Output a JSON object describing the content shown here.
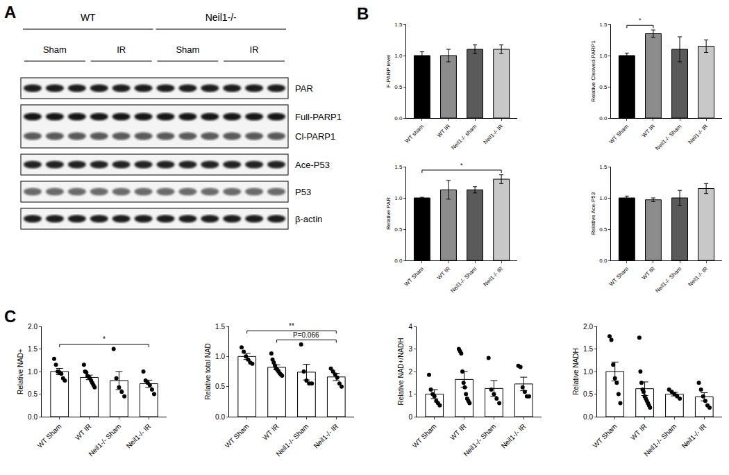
{
  "panel_labels": [
    "A",
    "B",
    "C"
  ],
  "blot": {
    "groups": [
      {
        "label": "WT",
        "conditions": [
          "Sham",
          "IR"
        ]
      },
      {
        "label": "Neil1-/-",
        "conditions": [
          "Sham",
          "IR"
        ]
      }
    ],
    "lanes_per_condition": 3,
    "rows": [
      {
        "labels": [
          "PAR"
        ]
      },
      {
        "labels": [
          "Full-PARP1",
          "Cl-PARP1"
        ]
      },
      {
        "labels": [
          "Ace-P53"
        ]
      },
      {
        "labels": [
          "P53"
        ]
      },
      {
        "labels": [
          "β-actin"
        ]
      }
    ]
  },
  "chart_data": [
    {
      "type": "bar",
      "y_label": "F-PARP level",
      "categories": [
        "WT sham",
        "WT IR",
        "Neil1-/- sham",
        "Neil1-/- IR"
      ],
      "values": [
        1.0,
        1.0,
        1.1,
        1.1
      ],
      "errors": [
        0.06,
        0.1,
        0.07,
        0.07
      ],
      "colors": [
        "#000000",
        "#8c8c8c",
        "#5a5a5a",
        "#c8c8c8"
      ],
      "ylim": [
        0,
        1.5
      ],
      "yticks": [
        {
          "value": 0,
          "label": "0.0"
        },
        {
          "value": 0.5,
          "label": "0.5"
        },
        {
          "value": 1,
          "label": "1.0"
        },
        {
          "value": 1.5,
          "label": "1.5"
        }
      ]
    },
    {
      "type": "bar",
      "y_label": "Relative Cleaved-PARP1",
      "categories": [
        "WT Sham",
        "WT IR",
        "Neil1-/- Sham",
        "Neil1-/- IR"
      ],
      "values": [
        1.0,
        1.35,
        1.1,
        1.15
      ],
      "errors": [
        0.04,
        0.06,
        0.2,
        0.1
      ],
      "colors": [
        "#000000",
        "#8c8c8c",
        "#5a5a5a",
        "#c8c8c8"
      ],
      "ylim": [
        0,
        1.5
      ],
      "yticks": [
        {
          "value": 0,
          "label": "0.0"
        },
        {
          "value": 0.5,
          "label": "0.5"
        },
        {
          "value": 1,
          "label": "1.0"
        },
        {
          "value": 1.5,
          "label": "1.5"
        }
      ],
      "brackets": [
        {
          "from": 0,
          "to": 1,
          "text": "*"
        }
      ]
    },
    {
      "type": "bar",
      "y_label": "Relative PAR",
      "categories": [
        "WT Sham",
        "WT IR",
        "Neil1-/- Sham",
        "Neil1-/- IR"
      ],
      "values": [
        1.0,
        1.13,
        1.13,
        1.3
      ],
      "errors": [
        0.01,
        0.15,
        0.05,
        0.07
      ],
      "colors": [
        "#000000",
        "#8c8c8c",
        "#5a5a5a",
        "#c8c8c8"
      ],
      "ylim": [
        0,
        1.5
      ],
      "yticks": [
        {
          "value": 0,
          "label": "0.0"
        },
        {
          "value": 0.5,
          "label": "0.5"
        },
        {
          "value": 1,
          "label": "1.0"
        },
        {
          "value": 1.5,
          "label": "1.5"
        }
      ],
      "brackets": [
        {
          "from": 0,
          "to": 3,
          "text": "*"
        }
      ]
    },
    {
      "type": "bar",
      "y_label": "Relative Ace-P53",
      "categories": [
        "WT Sham",
        "WT IR",
        "Neil1-/- Sham",
        "Neil1-/- IR"
      ],
      "values": [
        1.0,
        0.97,
        1.0,
        1.15
      ],
      "errors": [
        0.03,
        0.03,
        0.12,
        0.08
      ],
      "colors": [
        "#000000",
        "#8c8c8c",
        "#5a5a5a",
        "#c8c8c8"
      ],
      "ylim": [
        0,
        1.5
      ],
      "yticks": [
        {
          "value": 0,
          "label": "0.0"
        },
        {
          "value": 0.5,
          "label": "0.5"
        },
        {
          "value": 1,
          "label": "1.0"
        },
        {
          "value": 1.5,
          "label": "1.5"
        }
      ]
    },
    {
      "type": "bar",
      "y_label": "Relative NAD+",
      "categories": [
        "WT Sham",
        "WT IR",
        "Neil1-/- Sham",
        "Neil1-/- IR"
      ],
      "values": [
        1.0,
        0.87,
        0.8,
        0.73
      ],
      "errors": [
        0.07,
        0.05,
        0.2,
        0.08
      ],
      "colors": [
        "#ffffff",
        "#ffffff",
        "#ffffff",
        "#ffffff"
      ],
      "marker": "circle",
      "points": [
        [
          1.28,
          1.15,
          1.0,
          0.98,
          0.95,
          0.85,
          0.8
        ],
        [
          1.15,
          1.0,
          0.98,
          0.9,
          0.88,
          0.85,
          0.8,
          0.75,
          0.7,
          0.65
        ],
        [
          1.5,
          0.85,
          0.65,
          0.55,
          0.45
        ],
        [
          1.0,
          0.8,
          0.75,
          0.7,
          0.6,
          0.5
        ]
      ],
      "ylim": [
        0,
        2
      ],
      "yticks": [
        {
          "value": 0,
          "label": "0.0"
        },
        {
          "value": 0.5,
          "label": "0.5"
        },
        {
          "value": 1,
          "label": "1.0"
        },
        {
          "value": 1.5,
          "label": "1.5"
        },
        {
          "value": 2,
          "label": "2.0"
        }
      ],
      "brackets": [
        {
          "from": 0,
          "to": 3,
          "text": "*"
        }
      ]
    },
    {
      "type": "bar",
      "y_label": "Relative total NAD",
      "categories": [
        "WT Sham",
        "WT IR",
        "Neil1-/- Sham",
        "Neil1-/- IR"
      ],
      "values": [
        1.0,
        0.82,
        0.74,
        0.66
      ],
      "errors": [
        0.05,
        0.04,
        0.13,
        0.06
      ],
      "colors": [
        "#ffffff",
        "#ffffff",
        "#ffffff",
        "#ffffff"
      ],
      "marker": "circle",
      "points": [
        [
          1.15,
          1.08,
          1.0,
          0.95,
          0.9,
          0.88
        ],
        [
          1.05,
          0.95,
          0.9,
          0.85,
          0.8,
          0.78,
          0.75,
          0.72,
          0.7,
          0.68
        ],
        [
          1.2,
          0.75,
          0.6,
          0.55,
          0.55
        ],
        [
          0.8,
          0.75,
          0.7,
          0.65,
          0.55,
          0.5
        ]
      ],
      "ylim": [
        0,
        1.5
      ],
      "yticks": [
        {
          "value": 0,
          "label": "0.0"
        },
        {
          "value": 0.5,
          "label": "0.5"
        },
        {
          "value": 1,
          "label": "1.0"
        },
        {
          "value": 1.5,
          "label": "1.5"
        }
      ],
      "brackets": [
        {
          "from": 1,
          "to": 3,
          "text": "P=0.066"
        },
        {
          "from": 0,
          "to": 3,
          "text": "**"
        }
      ]
    },
    {
      "type": "bar",
      "y_label": "Relative NAD+/NADH",
      "categories": [
        "WT Sham",
        "WT IR",
        "Neil1-/- Sham",
        "Neil1-/- IR"
      ],
      "values": [
        1.0,
        1.65,
        1.25,
        1.45
      ],
      "errors": [
        0.2,
        0.35,
        0.35,
        0.3
      ],
      "colors": [
        "#ffffff",
        "#ffffff",
        "#ffffff",
        "#ffffff"
      ],
      "marker": "circle",
      "points": [
        [
          1.85,
          1.2,
          1.0,
          0.9,
          0.7,
          0.6,
          0.5
        ],
        [
          3.0,
          2.9,
          2.8,
          2.0,
          1.5,
          1.3,
          1.0,
          0.8,
          0.7,
          0.6
        ],
        [
          2.6,
          1.2,
          1.0,
          0.8,
          0.6
        ],
        [
          2.25,
          2.2,
          1.3,
          1.1,
          0.9,
          0.9
        ]
      ],
      "ylim": [
        0,
        4
      ],
      "yticks": [
        0,
        1,
        2,
        3,
        4
      ]
    },
    {
      "type": "bar",
      "y_label": "Relative NADH",
      "categories": [
        "WT Sham",
        "WT IR",
        "Neil1-/- Sham",
        "Neil1-/- IR"
      ],
      "values": [
        1.0,
        0.62,
        0.5,
        0.44
      ],
      "errors": [
        0.21,
        0.15,
        0.04,
        0.09
      ],
      "colors": [
        "#ffffff",
        "#ffffff",
        "#ffffff",
        "#ffffff"
      ],
      "marker": "circle",
      "points": [
        [
          1.78,
          1.7,
          1.15,
          0.85,
          0.75,
          0.5,
          0.3
        ],
        [
          1.75,
          1.0,
          0.75,
          0.6,
          0.55,
          0.45,
          0.4,
          0.35,
          0.3,
          0.25,
          0.2
        ],
        [
          0.6,
          0.55,
          0.5,
          0.45,
          0.4
        ],
        [
          0.75,
          0.6,
          0.45,
          0.35,
          0.25,
          0.2
        ]
      ],
      "ylim": [
        0,
        2
      ],
      "yticks": [
        {
          "value": 0,
          "label": "0.0"
        },
        {
          "value": 0.5,
          "label": "0.5"
        },
        {
          "value": 1,
          "label": "1.0"
        },
        {
          "value": 1.5,
          "label": "1.5"
        },
        {
          "value": 2,
          "label": "2.0"
        }
      ]
    }
  ]
}
